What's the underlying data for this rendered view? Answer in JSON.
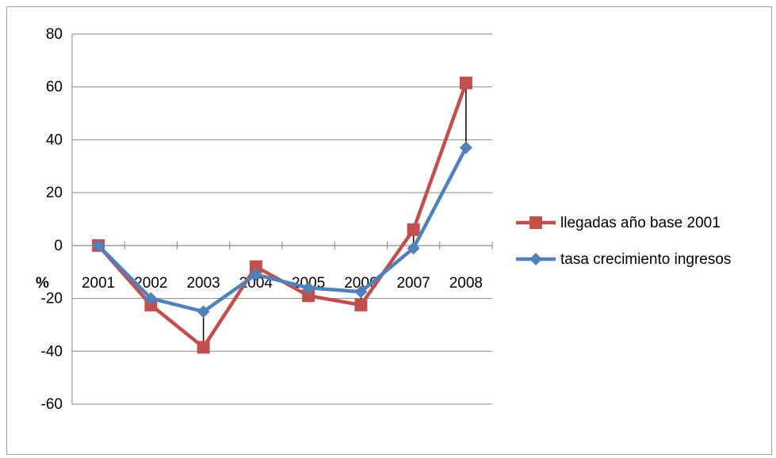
{
  "chart_data": {
    "type": "line",
    "categories": [
      "2001",
      "2002",
      "2003",
      "2004",
      "2005",
      "2006",
      "2007",
      "2008"
    ],
    "series": [
      {
        "name": "llegadas año base 2001",
        "color": "#c0504d",
        "marker": "square",
        "values": [
          0,
          -22.5,
          -38.5,
          -8,
          -19,
          -22.5,
          6,
          61.5
        ]
      },
      {
        "name": "tasa crecimiento ingresos",
        "color": "#4f81bd",
        "marker": "diamond",
        "values": [
          0,
          -20,
          -25,
          -11,
          -16,
          -17.5,
          -1,
          37
        ]
      }
    ],
    "unit_label": "%",
    "ylim": [
      -60,
      80
    ],
    "yticks": [
      "80",
      "60",
      "40",
      "20",
      "0",
      "-20",
      "-40",
      "-60"
    ],
    "grid": true,
    "high_low_lines": true,
    "legend_position": "right"
  }
}
